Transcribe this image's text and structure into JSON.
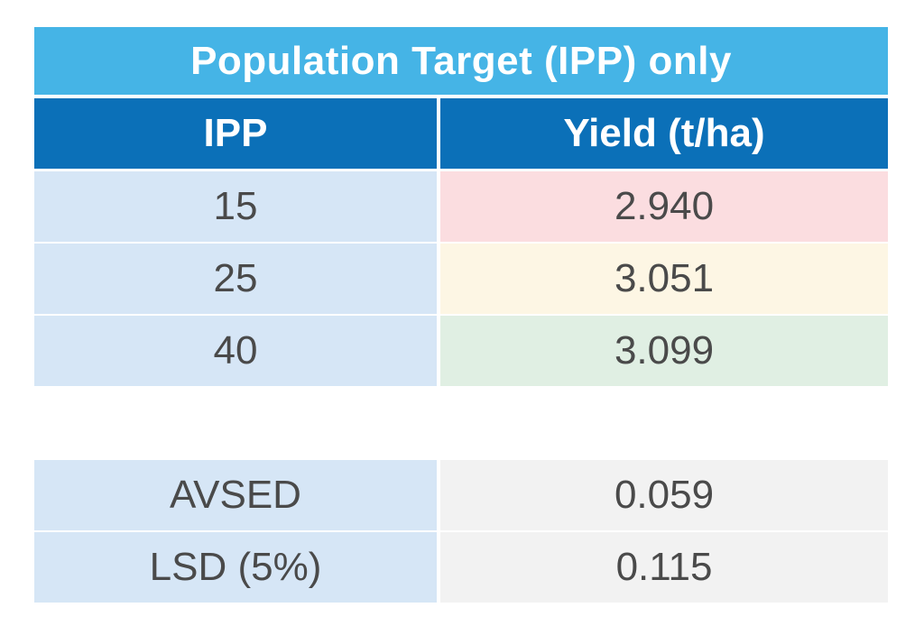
{
  "chart_data": {
    "type": "table",
    "title": "Population Target (IPP) only",
    "columns": [
      "IPP",
      "Yield (t/ha)"
    ],
    "rows": [
      {
        "ipp": "15",
        "yield": "2.940"
      },
      {
        "ipp": "25",
        "yield": "3.051"
      },
      {
        "ipp": "40",
        "yield": "3.099"
      }
    ],
    "stats": [
      {
        "label": "AVSED",
        "value": "0.059"
      },
      {
        "label": "LSD (5%)",
        "value": "0.115"
      }
    ]
  },
  "colors": {
    "title_bg": "#45b4e6",
    "header_bg": "#0b70b8",
    "label_bg": "#d6e6f6",
    "yield_low": "#fbdde0",
    "yield_mid": "#fdf6e4",
    "yield_high": "#e0efe3",
    "stat_bg": "#f2f2f2"
  }
}
